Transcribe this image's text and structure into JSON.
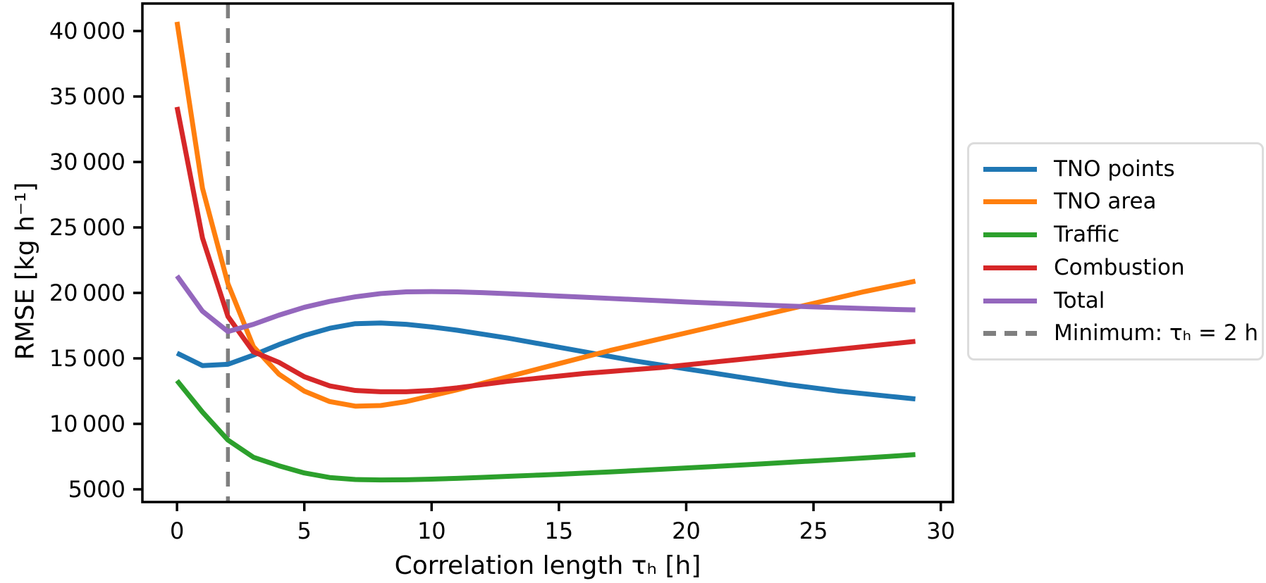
{
  "chart_data": {
    "type": "line",
    "x": [
      0,
      1,
      2,
      3,
      4,
      5,
      6,
      7,
      8,
      9,
      10,
      11,
      12,
      13,
      14,
      15,
      16,
      17,
      18,
      19,
      20,
      21,
      22,
      23,
      24,
      25,
      26,
      27,
      28,
      29
    ],
    "series": [
      {
        "name": "TNO points",
        "color": "#1f77b4",
        "values": [
          15400,
          14450,
          14550,
          15250,
          16050,
          16750,
          17300,
          17650,
          17700,
          17600,
          17400,
          17150,
          16850,
          16550,
          16200,
          15850,
          15500,
          15150,
          14800,
          14500,
          14200,
          13900,
          13600,
          13300,
          13000,
          12750,
          12500,
          12300,
          12100,
          11900
        ]
      },
      {
        "name": "TNO area",
        "color": "#ff7f0e",
        "values": [
          40700,
          28000,
          20700,
          15900,
          13800,
          12500,
          11700,
          11350,
          11400,
          11700,
          12150,
          12600,
          13100,
          13600,
          14100,
          14600,
          15100,
          15600,
          16050,
          16500,
          16950,
          17400,
          17850,
          18300,
          18750,
          19200,
          19650,
          20100,
          20500,
          20900
        ]
      },
      {
        "name": "Traffic",
        "color": "#2ca02c",
        "values": [
          13300,
          10900,
          8760,
          7450,
          6800,
          6250,
          5900,
          5750,
          5720,
          5730,
          5780,
          5840,
          5910,
          5990,
          6070,
          6150,
          6240,
          6330,
          6430,
          6530,
          6630,
          6730,
          6840,
          6950,
          7060,
          7170,
          7280,
          7400,
          7520,
          7650
        ]
      },
      {
        "name": "Combustion",
        "color": "#d62728",
        "values": [
          34200,
          24200,
          18200,
          15500,
          14700,
          13600,
          12900,
          12550,
          12450,
          12450,
          12550,
          12750,
          13000,
          13250,
          13450,
          13650,
          13850,
          14000,
          14150,
          14300,
          14500,
          14700,
          14900,
          15100,
          15300,
          15500,
          15700,
          15900,
          16100,
          16300
        ]
      },
      {
        "name": "Total",
        "color": "#9467bd",
        "values": [
          21300,
          18600,
          17050,
          17600,
          18300,
          18900,
          19350,
          19700,
          19950,
          20080,
          20100,
          20080,
          20020,
          19940,
          19850,
          19760,
          19670,
          19580,
          19490,
          19400,
          19310,
          19230,
          19150,
          19070,
          19000,
          18930,
          18870,
          18810,
          18750,
          18700
        ]
      }
    ],
    "vline": {
      "x": 2,
      "color": "#7f7f7f",
      "dash": true,
      "label": "Minimum: τₕ = 2 h"
    },
    "xlabel": "Correlation length τₕ [h]",
    "ylabel": "RMSE [kg h⁻¹]",
    "xticks": [
      0,
      5,
      10,
      15,
      20,
      25,
      30
    ],
    "xtick_labels": [
      "0",
      "5",
      "10",
      "15",
      "20",
      "25",
      "30"
    ],
    "yticks": [
      5000,
      10000,
      15000,
      20000,
      25000,
      30000,
      35000,
      40000
    ],
    "ytick_labels": [
      "5000",
      "10 000",
      "15 000",
      "20 000",
      "25 000",
      "30 000",
      "35 000",
      "40 000"
    ],
    "xlim": [
      -1.36,
      30.48
    ],
    "ylim": [
      4030,
      42100
    ],
    "grid": false,
    "legend_position": "outside-right"
  }
}
